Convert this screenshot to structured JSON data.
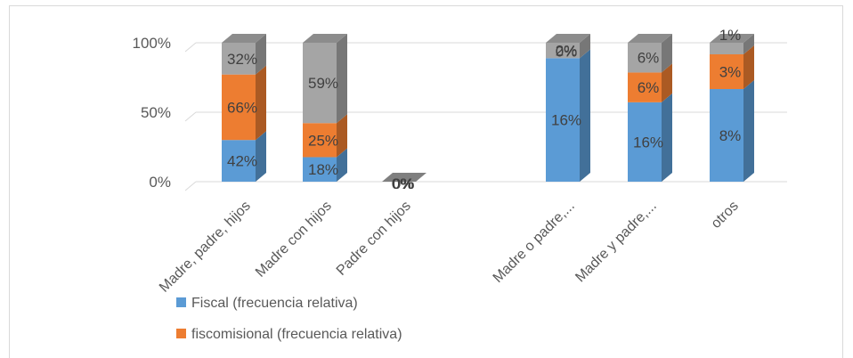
{
  "chart_data": {
    "type": "bar",
    "stacked": "percent",
    "style": "3d-column",
    "categories": [
      "Madre, padre, hijos",
      "Madre con hijos",
      "Padre con hijos",
      "Madre o padre,...",
      "Madre y padre,...",
      "otros"
    ],
    "series": [
      {
        "name": "Fiscal (frecuencia relativa)",
        "color": "#5b9bd5",
        "values": [
          42,
          18,
          0,
          16,
          16,
          8
        ],
        "labels": [
          "42%",
          "18%",
          "0%",
          "16%",
          "16%",
          "8%"
        ]
      },
      {
        "name": "fiscomisional (frecuencia relativa)",
        "color": "#ed7d31",
        "values": [
          66,
          25,
          0,
          0,
          6,
          3
        ],
        "labels": [
          "66%",
          "25%",
          "0%",
          "0%",
          "6%",
          "3%"
        ]
      },
      {
        "name": "",
        "color": "#a5a5a5",
        "values": [
          32,
          59,
          0,
          2,
          6,
          1
        ],
        "labels": [
          "32%",
          "59%",
          "0%",
          "2%",
          "6%",
          "1%"
        ]
      }
    ],
    "yticks": [
      "0%",
      "50%",
      "100%"
    ],
    "ylim": [
      0,
      100
    ],
    "grid": true,
    "legend_position": "bottom"
  }
}
